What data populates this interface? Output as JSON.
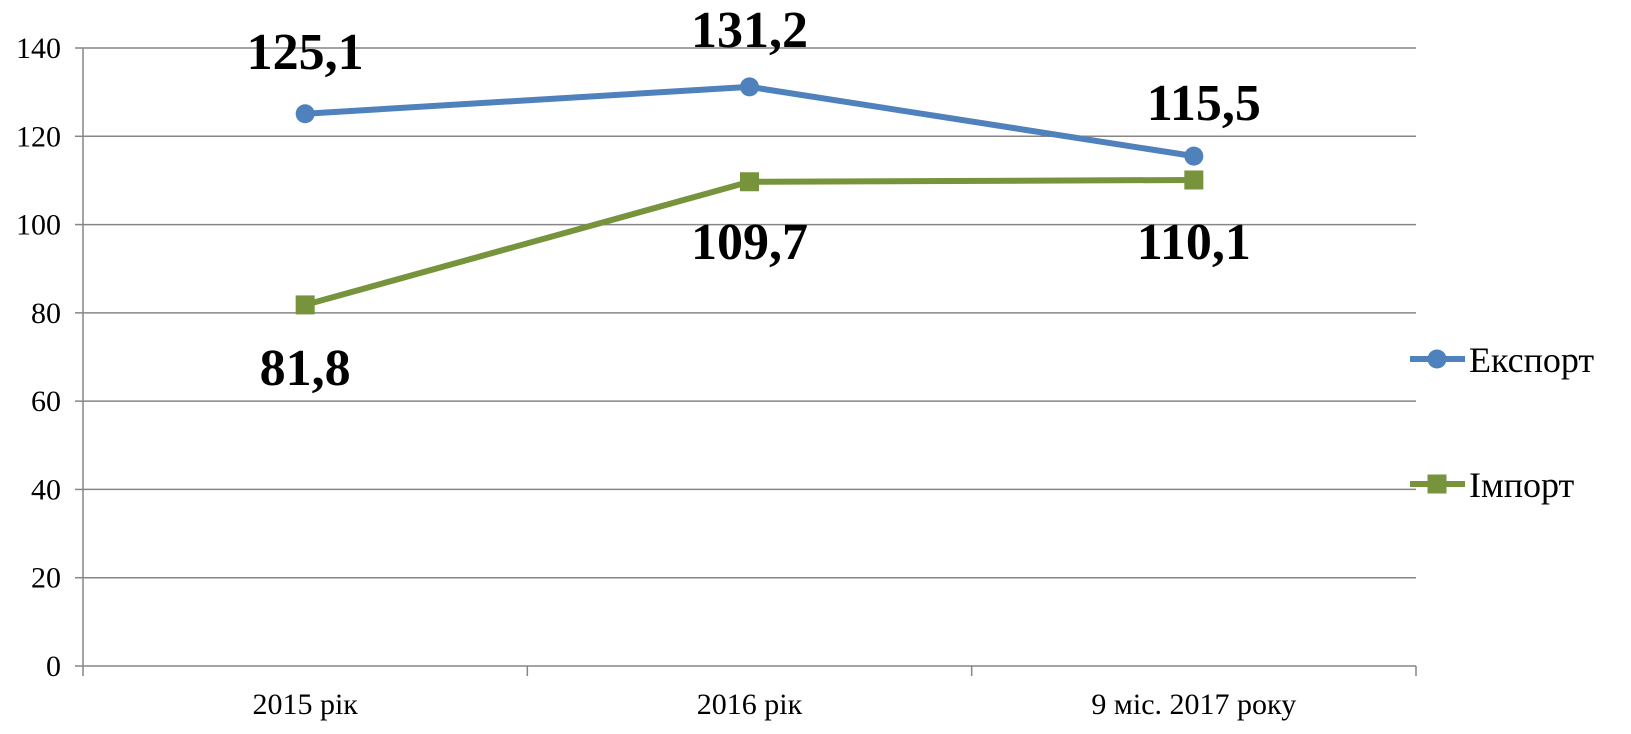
{
  "chart_data": {
    "type": "line",
    "categories": [
      "2015 рік",
      "2016 рік",
      "9 міс. 2017 року"
    ],
    "ylim": [
      0,
      140
    ],
    "yticks": [
      0,
      20,
      40,
      60,
      80,
      100,
      120,
      140
    ],
    "grid": true,
    "legend_position": "right",
    "series": [
      {
        "name": "Експорт",
        "values": [
          125.1,
          131.2,
          115.5
        ],
        "labels": [
          "125,1",
          "131,2",
          "115,5"
        ],
        "color": "#4f81bd",
        "marker": "circle"
      },
      {
        "name": "Імпорт",
        "values": [
          81.8,
          109.7,
          110.1
        ],
        "labels": [
          "81,8",
          "109,7",
          "110,1"
        ],
        "color": "#77933c",
        "marker": "square"
      }
    ]
  }
}
